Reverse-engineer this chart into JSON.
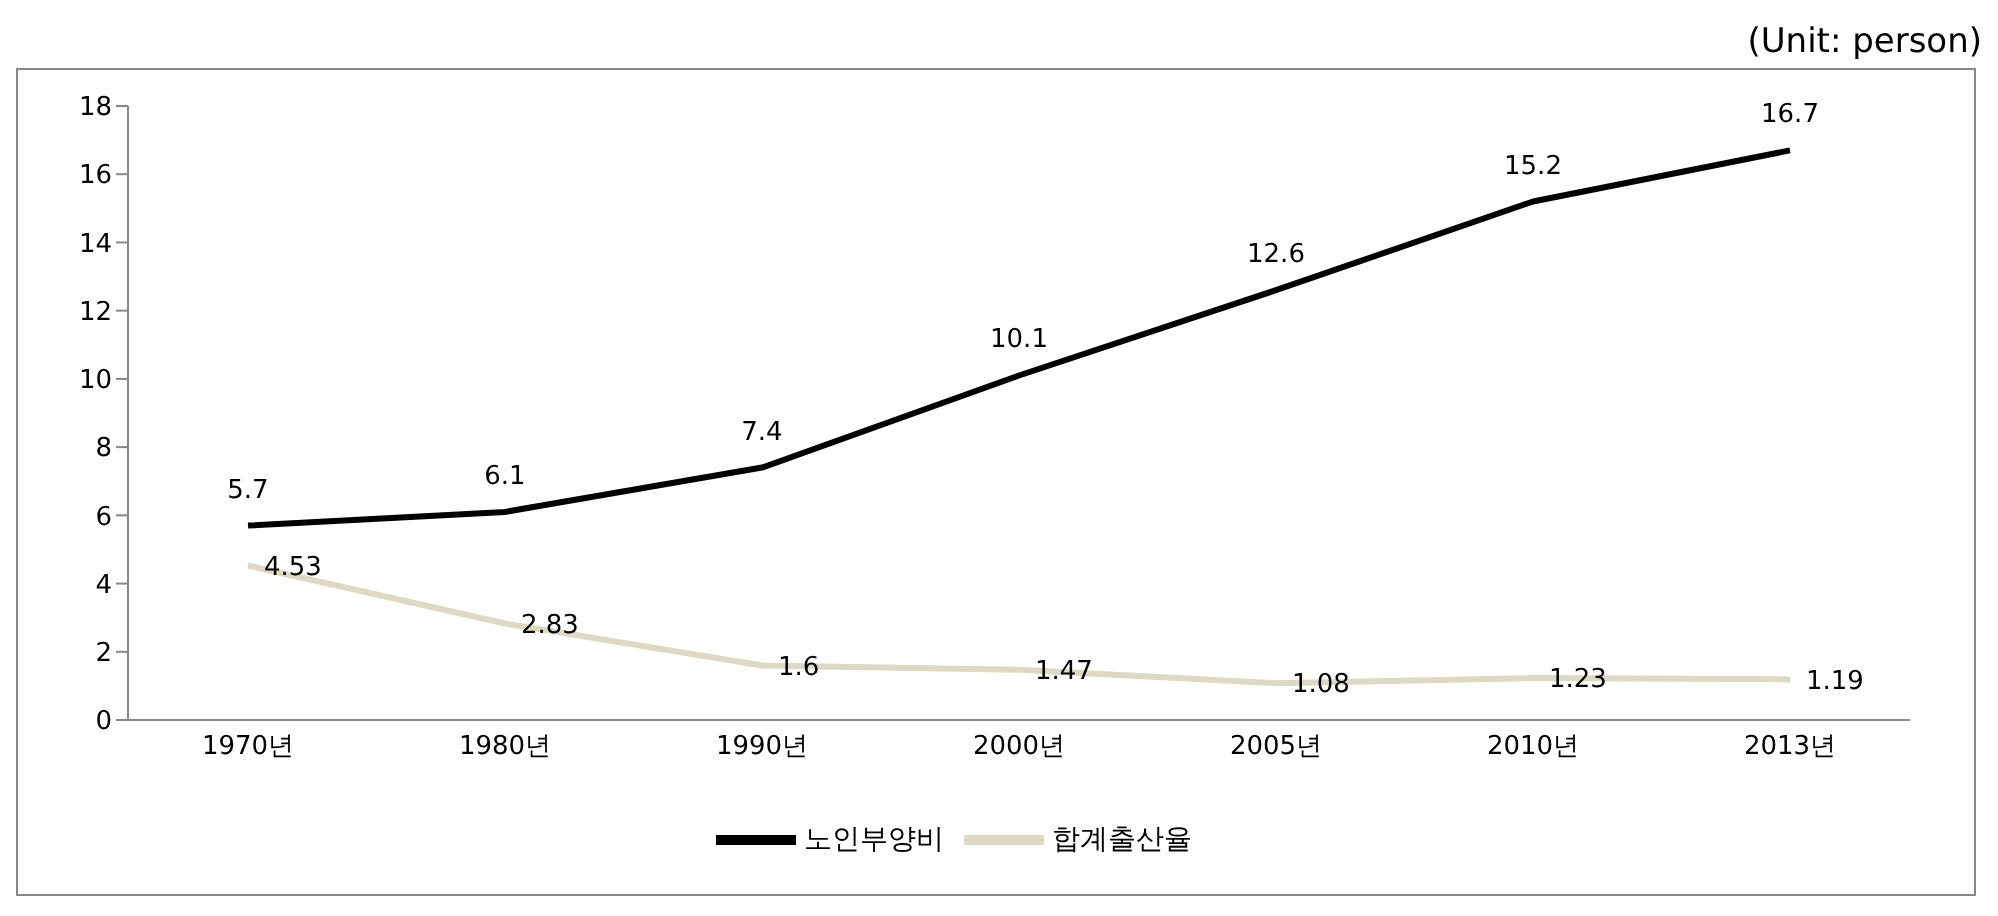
{
  "chart_data": {
    "type": "line",
    "annotations": [
      "(Unit: person)"
    ],
    "categories": [
      "1970년",
      "1980년",
      "1990년",
      "2000년",
      "2005년",
      "2010년",
      "2013년"
    ],
    "series": [
      {
        "name": "합계출산율",
        "color": "#ddd9c3",
        "values": [
          4.53,
          2.83,
          1.6,
          1.47,
          1.08,
          1.23,
          1.19
        ]
      },
      {
        "name": "노인부양비",
        "color": "#000000",
        "values": [
          5.7,
          6.1,
          7.4,
          10.1,
          12.6,
          15.2,
          16.7
        ]
      }
    ],
    "ylim": [
      0,
      18
    ],
    "yticks": [
      0,
      2,
      4,
      6,
      8,
      10,
      12,
      14,
      16,
      18
    ],
    "grid": false,
    "legend": "bottom",
    "marker": "none",
    "line_style": "solid",
    "data_labels": true
  }
}
